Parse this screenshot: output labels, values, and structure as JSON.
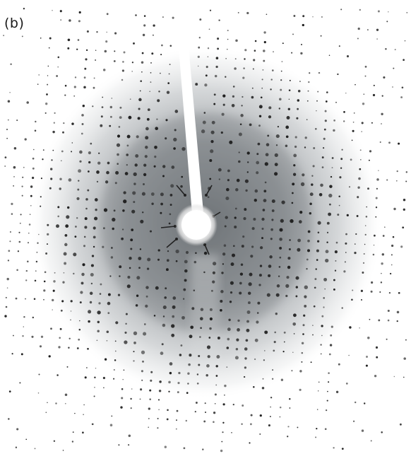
{
  "figure": {
    "panel_label": "(b)",
    "subject": "diffraction-pattern",
    "colors": {
      "background": "#ffffff",
      "halo": "#8a8f93",
      "spot": "#1e1e1e",
      "beam": "#ffffff"
    }
  }
}
